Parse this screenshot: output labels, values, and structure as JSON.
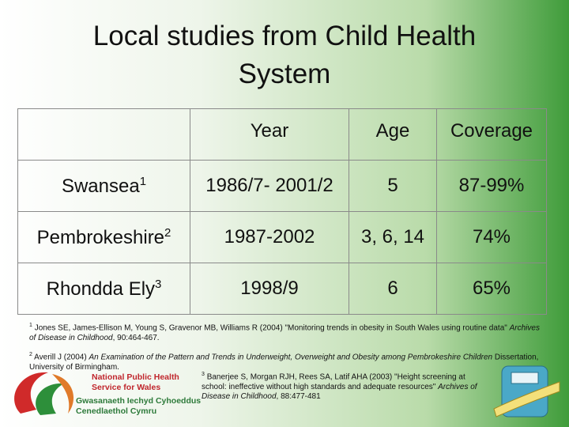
{
  "title": "Local studies from Child Health System",
  "table": {
    "columns": [
      "Year",
      "Age",
      "Coverage"
    ],
    "rows": [
      {
        "name": "Swansea",
        "ref": "1",
        "cells": [
          "1986/7- 2001/2",
          "5",
          "87-99%"
        ]
      },
      {
        "name": "Pembrokeshire",
        "ref": "2",
        "cells": [
          "1987-2002",
          "3, 6, 14",
          "74%"
        ]
      },
      {
        "name": "Rhondda Ely",
        "ref": "3",
        "cells": [
          "1998/9",
          "6",
          "65%"
        ]
      }
    ]
  },
  "footnotes": [
    {
      "ref": "1",
      "text": "Jones SE, James-Ellison M, Young S, Gravenor MB, Williams R (2004) \"Monitoring trends in obesity in South Wales using routine data\"",
      "italic": "Archives of Disease in Childhood",
      "rest": ", 90:464-467."
    },
    {
      "ref": "2",
      "text": "Averill J (2004)",
      "italic": "An Examination of the Pattern and Trends in Underweight, Overweight and Obesity among Pembrokeshire Children",
      "rest": "Dissertation, University of Birmingham."
    },
    {
      "ref": "3",
      "text": "Banerjee S, Morgan RJH, Rees SA, Latif AHA (2003) \"Height screening at school: ineffective without high standards and adequate resources\"",
      "italic": "Archives of Disease in Childhood",
      "rest": ", 88:477-481"
    }
  ],
  "logo": {
    "lines": [
      "National Public Health",
      "Service for Wales",
      "Gwasanaeth Iechyd Cyhoeddus",
      "Cenedlaethol Cymru"
    ]
  }
}
